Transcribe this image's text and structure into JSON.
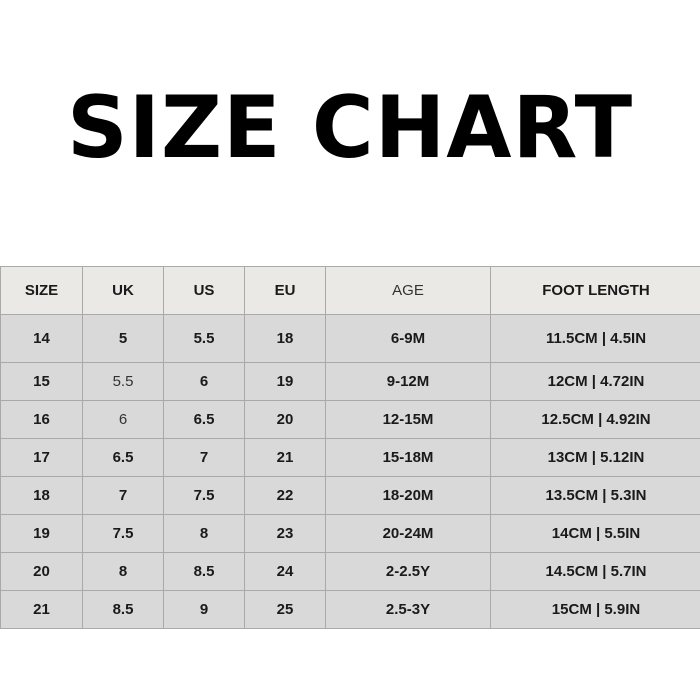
{
  "title": "SIZE CHART",
  "headers": [
    "SIZE",
    "UK",
    "US",
    "EU",
    "AGE",
    "FOOT LENGTH"
  ],
  "rows": [
    [
      "14",
      "5",
      "5.5",
      "18",
      "6-9M",
      "11.5CM | 4.5IN"
    ],
    [
      "15",
      "5.5",
      "6",
      "19",
      "9-12M",
      "12CM | 4.72IN"
    ],
    [
      "16",
      "6",
      "6.5",
      "20",
      "12-15M",
      "12.5CM | 4.92IN"
    ],
    [
      "17",
      "6.5",
      "7",
      "21",
      "15-18M",
      "13CM | 5.12IN"
    ],
    [
      "18",
      "7",
      "7.5",
      "22",
      "18-20M",
      "13.5CM | 5.3IN"
    ],
    [
      "19",
      "7.5",
      "8",
      "23",
      "20-24M",
      "14CM | 5.5IN"
    ],
    [
      "20",
      "8",
      "8.5",
      "24",
      "2-2.5Y",
      "14.5CM | 5.7IN"
    ],
    [
      "21",
      "8.5",
      "9",
      "25",
      "2.5-3Y",
      "15CM | 5.9IN"
    ]
  ]
}
